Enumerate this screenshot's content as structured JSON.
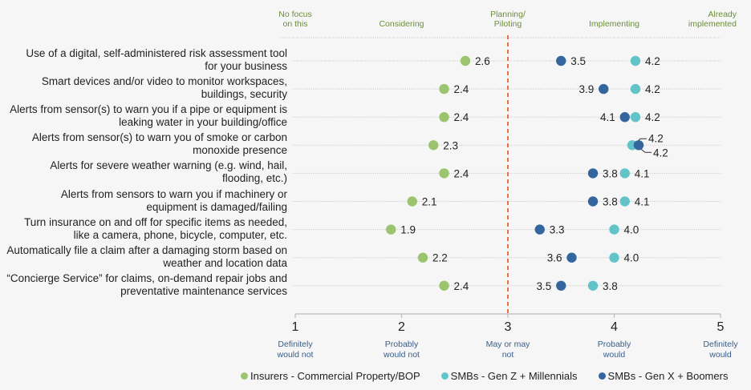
{
  "chart_data": {
    "type": "scatter",
    "subtype": "dot-plot",
    "title": "",
    "xlim": [
      1,
      5
    ],
    "x_ticks": [
      {
        "value": 1,
        "label": "1",
        "description": "Definitely would not"
      },
      {
        "value": 2,
        "label": "2",
        "description": "Probably would not"
      },
      {
        "value": 3,
        "label": "3",
        "description": "May or may not"
      },
      {
        "value": 4,
        "label": "4",
        "description": "Probably would"
      },
      {
        "value": 5,
        "label": "5",
        "description": "Definitely would"
      }
    ],
    "stage_labels": [
      {
        "value": 1,
        "label": "No focus on this"
      },
      {
        "value": 2,
        "label": "Considering"
      },
      {
        "value": 3,
        "label": "Planning/ Piloting"
      },
      {
        "value": 4,
        "label": "Implementing"
      },
      {
        "value": 5,
        "label": "Already implemented"
      }
    ],
    "reference_line": {
      "value": 3,
      "style": "dashed",
      "color": "#e8622c"
    },
    "categories": [
      "Use of a digital, self-administered risk assessment tool for your business",
      "Smart devices and/or video to monitor workspaces, buildings, security",
      "Alerts from sensor(s) to warn you if a pipe or equipment is leaking water in your building/office",
      "Alerts from sensor(s) to warn you of smoke or carbon monoxide presence",
      "Alerts for severe weather warning (e.g. wind, hail, flooding, etc.)",
      "Alerts from sensors to warn you if machinery or equipment is damaged/failing",
      "Turn insurance on and off for specific items as needed, like a camera, phone, bicycle, computer, etc.",
      "Automatically file a claim after a damaging storm based on weather and location data",
      "“Concierge Service” for claims, on-demand repair jobs and preventative maintenance services"
    ],
    "series": [
      {
        "name": "Insurers - Commercial Property/BOP",
        "color": "#9bc46e",
        "values": [
          2.6,
          2.4,
          2.4,
          2.3,
          2.4,
          2.1,
          1.9,
          2.2,
          2.4
        ]
      },
      {
        "name": "SMBs - Gen Z + Millennials",
        "color": "#62c3c8",
        "values": [
          4.2,
          4.2,
          4.2,
          4.2,
          4.1,
          4.1,
          4.0,
          4.0,
          3.8
        ]
      },
      {
        "name": "SMBs - Gen X + Boomers",
        "color": "#33669e",
        "values": [
          3.5,
          3.9,
          4.1,
          4.2,
          3.8,
          3.8,
          3.3,
          3.6,
          3.5
        ]
      }
    ],
    "legend_position": "bottom",
    "grid": "dotted horizontal row lines"
  },
  "labels": {
    "row_lines": [
      [
        "Use of a digital, self-administered risk assessment tool",
        "for your business"
      ],
      [
        "Smart devices and/or video to monitor workspaces,",
        "buildings, security"
      ],
      [
        "Alerts from sensor(s) to warn you if a pipe or equipment is",
        "leaking water in your building/office"
      ],
      [
        "Alerts from sensor(s) to warn you of smoke or carbon",
        "monoxide presence"
      ],
      [
        "Alerts for severe weather warning (e.g. wind, hail,",
        "flooding, etc.)"
      ],
      [
        "Alerts from sensors to warn you if machinery or",
        "equipment is damaged/failing"
      ],
      [
        "Turn insurance on and off for specific items as needed,",
        "like a camera, phone, bicycle, computer, etc."
      ],
      [
        "Automatically file a claim after a damaging storm based on",
        "weather and location data"
      ],
      [
        "“Concierge Service” for claims, on-demand repair jobs and",
        "preventative maintenance services"
      ]
    ],
    "stage_lines": [
      [
        "No focus",
        "on this"
      ],
      [
        "",
        "Considering"
      ],
      [
        "Planning/",
        "Piloting"
      ],
      [
        "",
        "Implementing"
      ],
      [
        "Already",
        "implemented"
      ]
    ],
    "tick_desc_lines": [
      [
        "Definitely",
        "would not"
      ],
      [
        "Probably",
        "would not"
      ],
      [
        "May or may",
        "not"
      ],
      [
        "Probably",
        "would"
      ],
      [
        "Definitely",
        "would"
      ]
    ]
  }
}
